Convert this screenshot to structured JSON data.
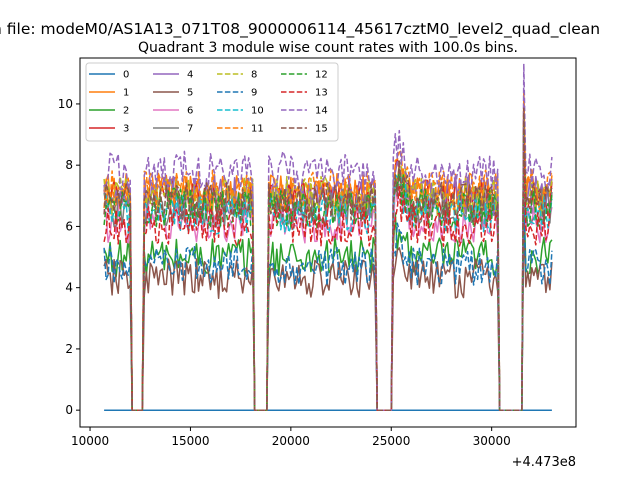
{
  "chart_data": {
    "type": "line",
    "suptitle": "n file: modeM0/AS1A13_071T08_9000006114_45617cztM0_level2_quad_clean",
    "title": "Quadrant 3 module wise count rates with 100.0s bins.",
    "xlabel": "",
    "ylabel": "",
    "x_offset_label": "+4.473e8",
    "xlim": [
      9500,
      34200
    ],
    "ylim": [
      -0.55,
      11.5
    ],
    "x_ticks": [
      10000,
      15000,
      20000,
      25000,
      30000
    ],
    "x_tick_labels": [
      "10000",
      "15000",
      "20000",
      "25000",
      "30000"
    ],
    "y_ticks": [
      0,
      2,
      4,
      6,
      8,
      10
    ],
    "y_tick_labels": [
      "0",
      "2",
      "4",
      "6",
      "8",
      "10"
    ],
    "legend_position": "upper left",
    "x_range": [
      10700,
      33000
    ],
    "bin_width": 100,
    "active_intervals": [
      [
        10700,
        12050
      ],
      [
        12700,
        18100
      ],
      [
        18900,
        24200
      ],
      [
        25100,
        30300
      ],
      [
        31550,
        33000
      ]
    ],
    "series": [
      {
        "name": "0",
        "color": "#1f77b4",
        "dash": "solid",
        "level": 0.0
      },
      {
        "name": "1",
        "color": "#ff7f0e",
        "dash": "solid",
        "level": 7.1
      },
      {
        "name": "2",
        "color": "#2ca02c",
        "dash": "solid",
        "level": 5.0
      },
      {
        "name": "3",
        "color": "#d62728",
        "dash": "solid",
        "level": 6.9
      },
      {
        "name": "4",
        "color": "#9467bd",
        "dash": "solid",
        "level": 7.0
      },
      {
        "name": "5",
        "color": "#8c564b",
        "dash": "solid",
        "level": 4.3
      },
      {
        "name": "6",
        "color": "#e377c2",
        "dash": "solid",
        "level": 6.1
      },
      {
        "name": "7",
        "color": "#7f7f7f",
        "dash": "solid",
        "level": 6.6
      },
      {
        "name": "8",
        "color": "#bcbd22",
        "dash": "dashed",
        "level": 7.0
      },
      {
        "name": "9",
        "color": "#1f77b4",
        "dash": "dashed",
        "level": 4.7
      },
      {
        "name": "10",
        "color": "#17becf",
        "dash": "dashed",
        "level": 6.4
      },
      {
        "name": "11",
        "color": "#ff7f0e",
        "dash": "dashed",
        "level": 7.2
      },
      {
        "name": "12",
        "color": "#2ca02c",
        "dash": "dashed",
        "level": 6.6
      },
      {
        "name": "13",
        "color": "#d62728",
        "dash": "dashed",
        "level": 6.0
      },
      {
        "name": "14",
        "color": "#9467bd",
        "dash": "dashed",
        "level": 7.8
      },
      {
        "name": "15",
        "color": "#8c564b",
        "dash": "dashed",
        "level": 6.8
      }
    ]
  }
}
